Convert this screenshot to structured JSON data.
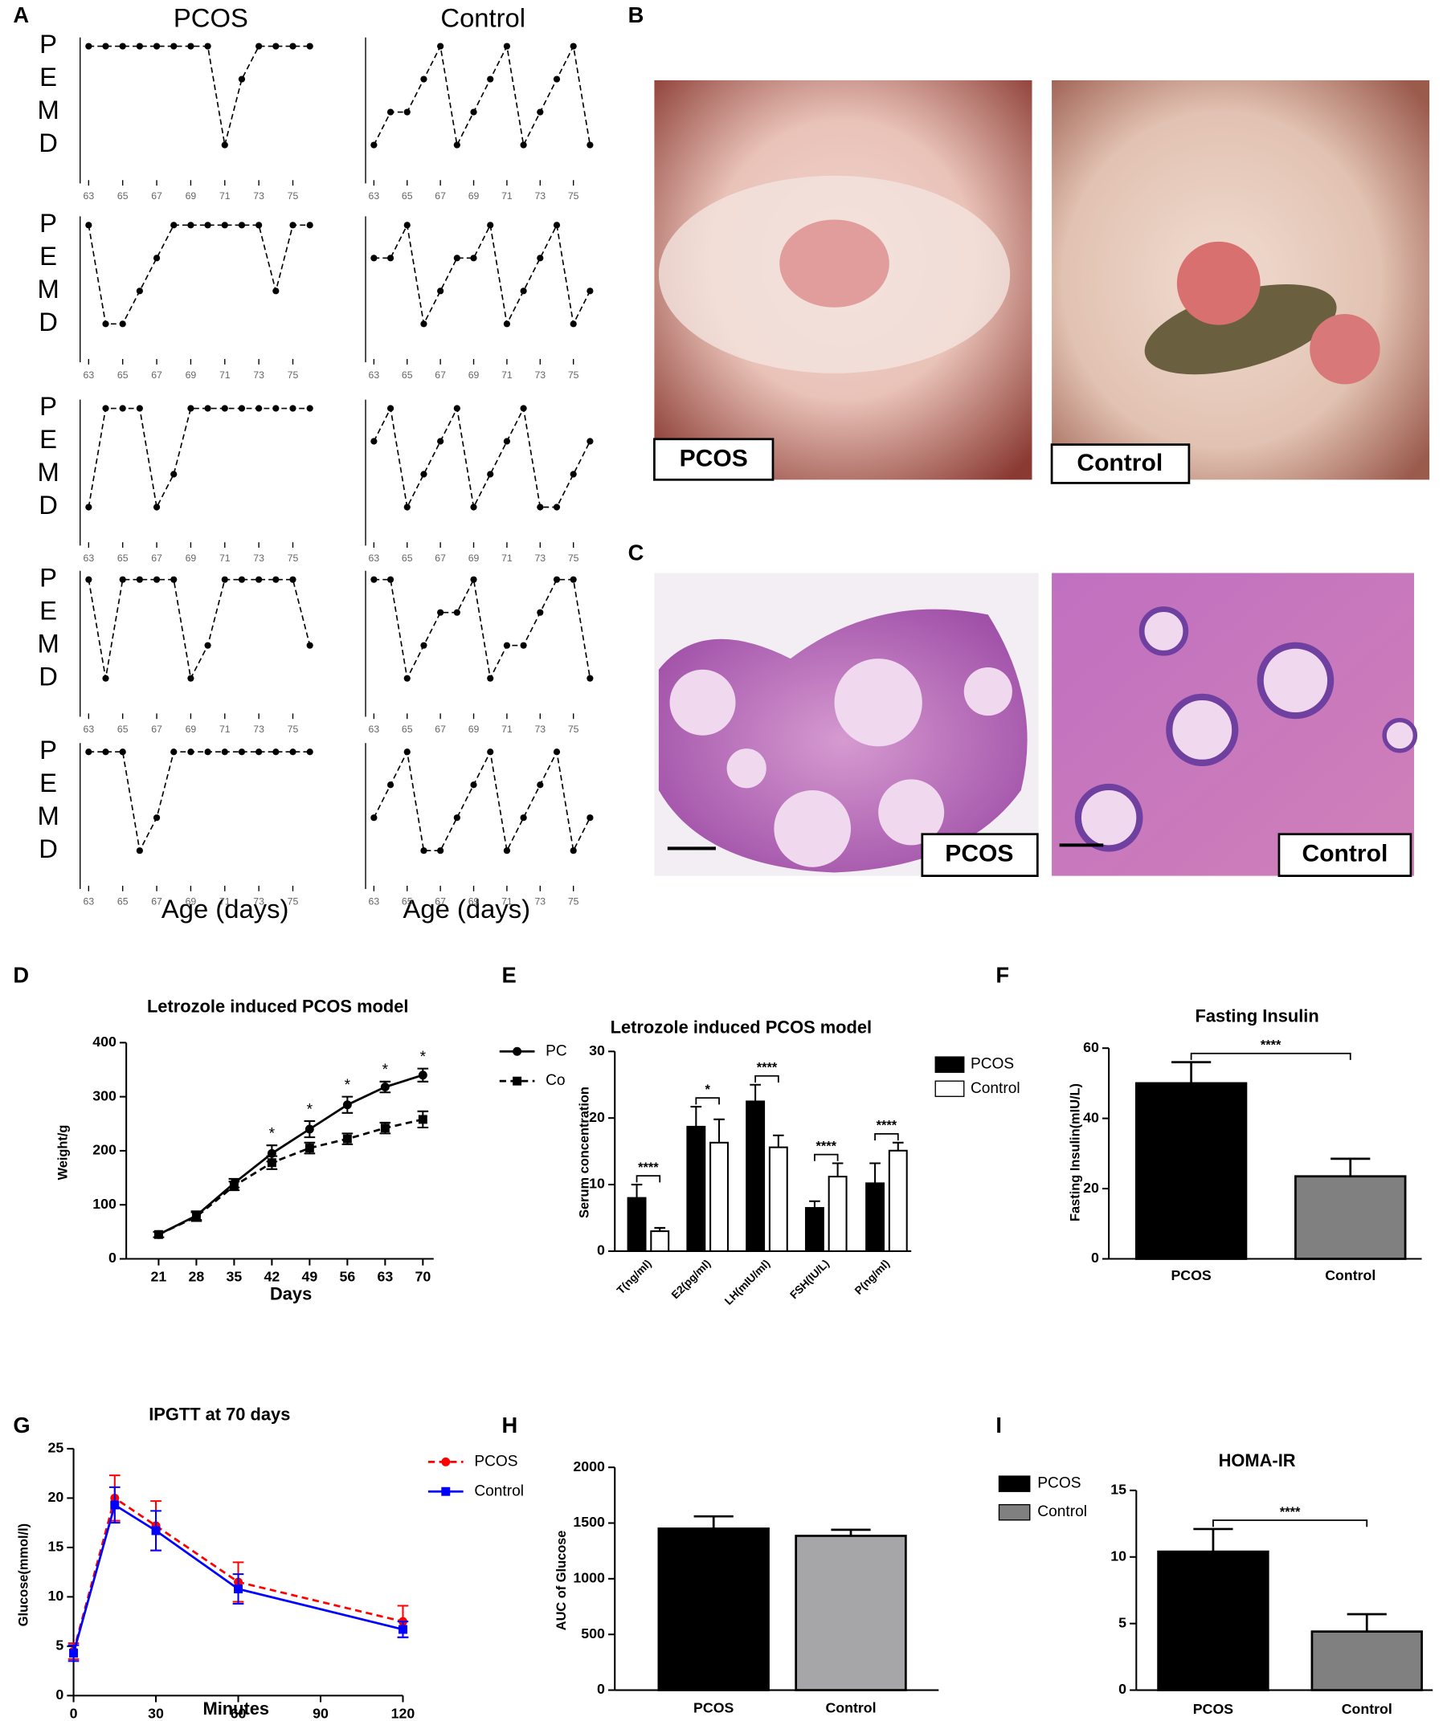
{
  "panel_labels": [
    "A",
    "B",
    "C",
    "D",
    "E",
    "F",
    "G",
    "H",
    "I"
  ],
  "photos": [
    {
      "label": "PCOS"
    },
    {
      "label": "Control"
    },
    {
      "label": "PCOS"
    },
    {
      "label": "Control"
    }
  ],
  "chart_data": [
    {
      "type": "line",
      "title": "PCOS",
      "y_categories": [
        "P",
        "E",
        "M",
        "D"
      ],
      "x": [
        63,
        64,
        65,
        66,
        67,
        68,
        69,
        70,
        71,
        72,
        73,
        74,
        75,
        76
      ],
      "values": [
        "P",
        "P",
        "P",
        "P",
        "P",
        "P",
        "P",
        "P",
        "D",
        "E",
        "P",
        "P",
        "P",
        "P"
      ],
      "xlim": [
        62.5,
        76.5
      ],
      "xticks": [
        63,
        65,
        67,
        69,
        71,
        73,
        75
      ]
    },
    {
      "type": "line",
      "title": "Control",
      "x": [
        63,
        64,
        65,
        66,
        67,
        68,
        69,
        70,
        71,
        72,
        73,
        74,
        75,
        76
      ],
      "values": [
        "D",
        "M",
        "M",
        "E",
        "P",
        "D",
        "M",
        "E",
        "P",
        "D",
        "M",
        "E",
        "P",
        "D"
      ],
      "xlim": [
        62.5,
        76.5
      ],
      "xticks": [
        63,
        65,
        67,
        69,
        71,
        73,
        75
      ]
    },
    {
      "type": "line",
      "y_categories": [
        "P",
        "E",
        "M",
        "D"
      ],
      "x": [
        63,
        64,
        65,
        66,
        67,
        68,
        69,
        70,
        71,
        72,
        73,
        74,
        75,
        76
      ],
      "values": [
        "P",
        "D",
        "D",
        "M",
        "E",
        "P",
        "P",
        "P",
        "P",
        "P",
        "P",
        "M",
        "P",
        "P"
      ],
      "xlim": [
        62.5,
        76.5
      ],
      "xticks": [
        63,
        65,
        67,
        69,
        71,
        73,
        75
      ]
    },
    {
      "type": "line",
      "x": [
        63,
        64,
        65,
        66,
        67,
        68,
        69,
        70,
        71,
        72,
        73,
        74,
        75,
        76
      ],
      "values": [
        "E",
        "E",
        "P",
        "D",
        "M",
        "E",
        "E",
        "P",
        "D",
        "M",
        "E",
        "P",
        "D",
        "M"
      ],
      "xlim": [
        62.5,
        76.5
      ],
      "xticks": [
        63,
        65,
        67,
        69,
        71,
        73,
        75
      ]
    },
    {
      "type": "line",
      "y_categories": [
        "P",
        "E",
        "M",
        "D"
      ],
      "x": [
        63,
        64,
        65,
        66,
        67,
        68,
        69,
        70,
        71,
        72,
        73,
        74,
        75,
        76
      ],
      "values": [
        "D",
        "P",
        "P",
        "P",
        "D",
        "M",
        "P",
        "P",
        "P",
        "P",
        "P",
        "P",
        "P",
        "P"
      ],
      "xlim": [
        62.5,
        76.5
      ],
      "xticks": [
        63,
        65,
        67,
        69,
        71,
        73,
        75
      ]
    },
    {
      "type": "line",
      "x": [
        63,
        64,
        65,
        66,
        67,
        68,
        69,
        70,
        71,
        72,
        73,
        74,
        75,
        76
      ],
      "values": [
        "E",
        "P",
        "D",
        "M",
        "E",
        "P",
        "D",
        "M",
        "E",
        "P",
        "D",
        "D",
        "M",
        "E"
      ],
      "xlim": [
        62.5,
        76.5
      ],
      "xticks": [
        63,
        65,
        67,
        69,
        71,
        73,
        75
      ]
    },
    {
      "type": "line",
      "y_categories": [
        "P",
        "E",
        "M",
        "D"
      ],
      "x": [
        63,
        64,
        65,
        66,
        67,
        68,
        69,
        70,
        71,
        72,
        73,
        74,
        75,
        76
      ],
      "values": [
        "P",
        "D",
        "P",
        "P",
        "P",
        "P",
        "D",
        "M",
        "P",
        "P",
        "P",
        "P",
        "P",
        "M"
      ],
      "xlim": [
        62.5,
        76.5
      ],
      "xticks": [
        63,
        65,
        67,
        69,
        71,
        73,
        75
      ]
    },
    {
      "type": "line",
      "x": [
        63,
        64,
        65,
        66,
        67,
        68,
        69,
        70,
        71,
        72,
        73,
        74,
        75,
        76
      ],
      "values": [
        "P",
        "P",
        "D",
        "M",
        "E",
        "E",
        "P",
        "D",
        "M",
        "M",
        "E",
        "P",
        "P",
        "D"
      ],
      "xlim": [
        62.5,
        76.5
      ],
      "xticks": [
        63,
        65,
        67,
        69,
        71,
        73,
        75
      ]
    },
    {
      "type": "line",
      "y_categories": [
        "P",
        "E",
        "M",
        "D"
      ],
      "x_label": "Age (days)",
      "x": [
        63,
        64,
        65,
        66,
        67,
        68,
        69,
        70,
        71,
        72,
        73,
        74,
        75,
        76
      ],
      "values": [
        "P",
        "P",
        "P",
        "D",
        "M",
        "P",
        "P",
        "P",
        "P",
        "P",
        "P",
        "P",
        "P",
        "P"
      ],
      "xlim": [
        62.5,
        76.5
      ],
      "xticks": [
        63,
        65,
        67,
        69,
        71,
        73,
        75
      ]
    },
    {
      "type": "line",
      "x_label": "Age (days)",
      "x": [
        63,
        64,
        65,
        66,
        67,
        68,
        69,
        70,
        71,
        72,
        73,
        74,
        75,
        76
      ],
      "values": [
        "M",
        "E",
        "P",
        "D",
        "D",
        "M",
        "E",
        "P",
        "D",
        "M",
        "E",
        "P",
        "D",
        "M"
      ],
      "xlim": [
        62.5,
        76.5
      ],
      "xticks": [
        63,
        65,
        67,
        69,
        71,
        73,
        75
      ]
    },
    {
      "type": "line",
      "title": "Letrozole induced PCOS model",
      "x_label": "Days",
      "y_label": "Weight/g",
      "x": [
        21,
        28,
        35,
        42,
        49,
        56,
        63,
        70
      ],
      "xlim": [
        15,
        72
      ],
      "xticks": [
        21,
        28,
        35,
        42,
        49,
        56,
        63,
        70
      ],
      "ylim": [
        0,
        400
      ],
      "yticks": [
        0,
        100,
        200,
        300,
        400
      ],
      "series": [
        {
          "name": "PC",
          "color": "#000000",
          "line_style": "solid",
          "marker": "circle",
          "values": [
            45,
            80,
            140,
            195,
            240,
            285,
            318,
            340
          ],
          "errors": [
            5,
            8,
            8,
            15,
            15,
            15,
            10,
            12
          ]
        },
        {
          "name": "Co",
          "color": "#000000",
          "line_style": "dashed",
          "marker": "square",
          "values": [
            45,
            78,
            135,
            178,
            205,
            222,
            242,
            258
          ],
          "errors": [
            5,
            8,
            8,
            12,
            10,
            10,
            10,
            15
          ]
        }
      ],
      "annotations": [
        {
          "x": 42,
          "text": "*"
        },
        {
          "x": 49,
          "text": "*"
        },
        {
          "x": 56,
          "text": "*"
        },
        {
          "x": 63,
          "text": "*"
        },
        {
          "x": 70,
          "text": "*"
        }
      ]
    },
    {
      "type": "grouped_bar",
      "title": "Letrozole induced PCOS model",
      "y_label": "Serum concentration",
      "categories": [
        "T(ng/ml)",
        "E2(pg/ml)",
        "LH(mIU/ml)",
        "FSH(IU/L)",
        "P(ng/ml)"
      ],
      "ylim": [
        0,
        30
      ],
      "yticks": [
        0,
        10,
        20,
        30
      ],
      "series": [
        {
          "name": "PCOS",
          "color": "#000000",
          "values": [
            8,
            18.7,
            22.5,
            6.5,
            10.2
          ],
          "errors": [
            2,
            3,
            2.5,
            1,
            3
          ]
        },
        {
          "name": "Control",
          "color": "#ffffff",
          "values": [
            3,
            16.3,
            15.6,
            11.2,
            15.1
          ],
          "errors": [
            0.5,
            3.5,
            1.8,
            2,
            1.2
          ]
        }
      ],
      "significance": [
        "****",
        "*",
        "****",
        "****",
        "****"
      ]
    },
    {
      "type": "bar",
      "title": "Fasting Insulin",
      "y_label": "Fasting Insulin(mIU/L)",
      "categories": [
        "PCOS",
        "Control"
      ],
      "values": [
        50,
        23.5
      ],
      "errors": [
        6,
        5
      ],
      "colors": [
        "#000000",
        "#808080"
      ],
      "ylim": [
        0,
        60
      ],
      "yticks": [
        0,
        20,
        40,
        60
      ],
      "significance": "****"
    },
    {
      "type": "line",
      "title": "IPGTT at 70 days",
      "x_label": "Minutes",
      "y_label": "Glucose(mmol/l)",
      "x": [
        0,
        15,
        30,
        60,
        120
      ],
      "xlim": [
        0,
        120
      ],
      "xticks": [
        0,
        30,
        60,
        90,
        120
      ],
      "ylim": [
        0,
        25
      ],
      "yticks": [
        0,
        5,
        10,
        15,
        20,
        25
      ],
      "series": [
        {
          "name": "PCOS",
          "color": "#ff0000",
          "line_style": "dashed",
          "marker": "circle",
          "values": [
            4.5,
            20,
            17.2,
            11.5,
            7.5
          ],
          "errors": [
            0.8,
            2.3,
            2.5,
            2,
            1.6
          ]
        },
        {
          "name": "Control",
          "color": "#0000ff",
          "line_style": "solid",
          "marker": "square",
          "values": [
            4.3,
            19.3,
            16.7,
            10.8,
            6.7
          ],
          "errors": [
            0.8,
            1.8,
            2,
            1.5,
            0.8
          ]
        }
      ]
    },
    {
      "type": "bar",
      "y_label": "AUC of Glucose",
      "categories": [
        "PCOS",
        "Control"
      ],
      "values": [
        1450,
        1385
      ],
      "errors": [
        110,
        55
      ],
      "colors": [
        "#000000",
        "#a6a6a8"
      ],
      "ylim": [
        0,
        2000
      ],
      "yticks": [
        0,
        500,
        1000,
        1500,
        2000
      ]
    },
    {
      "type": "bar",
      "title": "HOMA-IR",
      "categories": [
        "PCOS",
        "Control"
      ],
      "values": [
        10.4,
        4.4
      ],
      "errors": [
        1.7,
        1.3
      ],
      "colors": [
        "#000000",
        "#808080"
      ],
      "ylim": [
        0,
        15
      ],
      "yticks": [
        0,
        5,
        10,
        15
      ],
      "significance": "****",
      "legend": true
    }
  ]
}
